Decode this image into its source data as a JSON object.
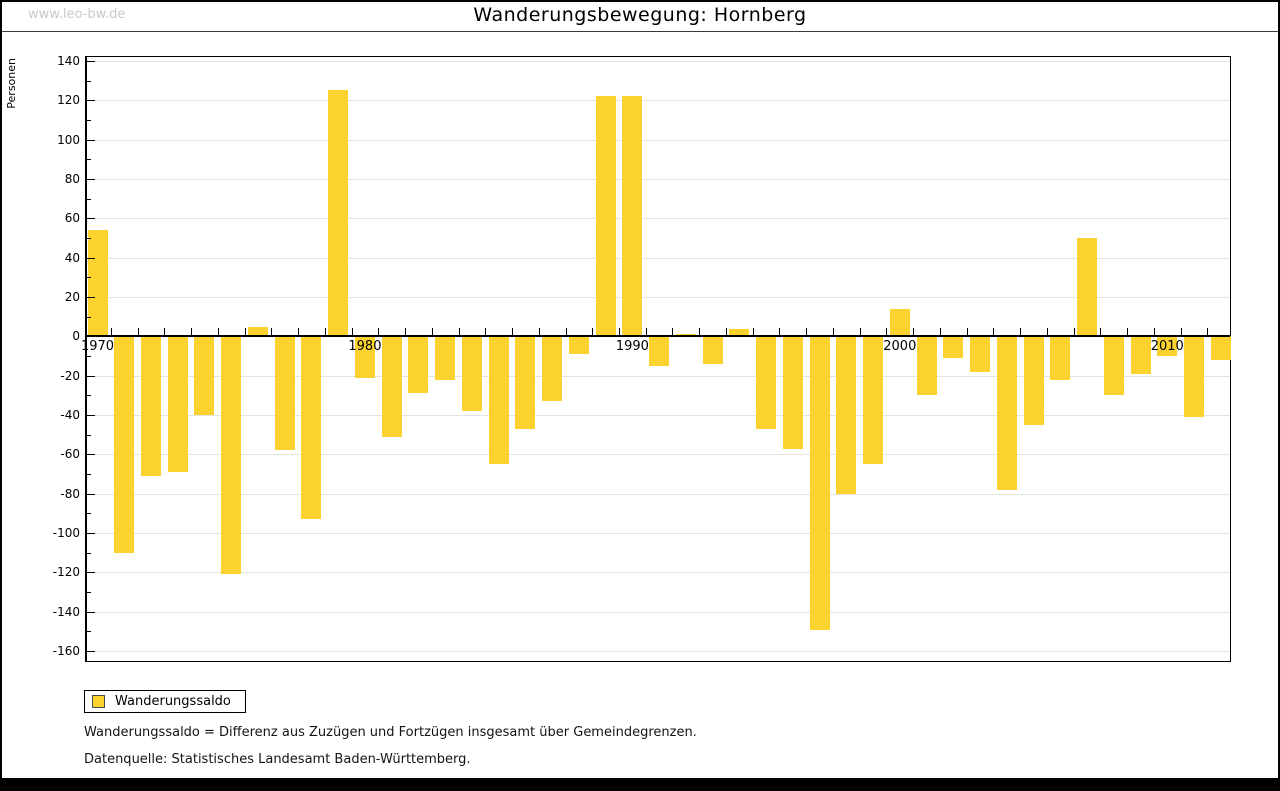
{
  "watermark": "www.leo-bw.de",
  "title": "Wanderungsbewegung: Hornberg",
  "legend": {
    "label": "Wanderungssaldo"
  },
  "footnotes": [
    "Wanderungssaldo = Differenz aus Zuzügen und Fortzügen insgesamt über Gemeindegrenzen.",
    "Datenquelle: Statistisches Landesamt Baden-Württemberg."
  ],
  "colors": {
    "bar": "#fcd32e",
    "gridline": "#e3e3e3",
    "watermark": "#c9c9c9"
  },
  "chart_data": {
    "type": "bar",
    "title": "Wanderungsbewegung: Hornberg",
    "xlabel": "",
    "ylabel": "Personen",
    "series_name": "Wanderungssaldo",
    "x": [
      1970,
      1971,
      1972,
      1973,
      1974,
      1975,
      1976,
      1977,
      1978,
      1979,
      1980,
      1981,
      1982,
      1983,
      1984,
      1985,
      1986,
      1987,
      1988,
      1989,
      1990,
      1991,
      1992,
      1993,
      1994,
      1995,
      1996,
      1997,
      1998,
      1999,
      2000,
      2001,
      2002,
      2003,
      2004,
      2005,
      2006,
      2007,
      2008,
      2009,
      2010,
      2011,
      2012
    ],
    "values": [
      54,
      -110,
      -71,
      -69,
      -40,
      -121,
      5,
      -58,
      -93,
      125,
      -21,
      -51,
      -29,
      -22,
      -38,
      -65,
      -47,
      -33,
      -9,
      122,
      122,
      -15,
      1,
      -14,
      4,
      -47,
      -57,
      -149,
      -80,
      -65,
      14,
      -30,
      -11,
      -18,
      -78,
      -45,
      -22,
      50,
      -30,
      -19,
      -10,
      -41,
      -12
    ],
    "ylim": [
      -160,
      140
    ],
    "y_major_step": 20,
    "y_minor_step": 10,
    "x_tick_labels": [
      1970,
      1980,
      1990,
      2000,
      2010
    ],
    "grid": "horizontal-major",
    "legend_position": "bottom-left",
    "bar_color": "#fcd32e"
  }
}
